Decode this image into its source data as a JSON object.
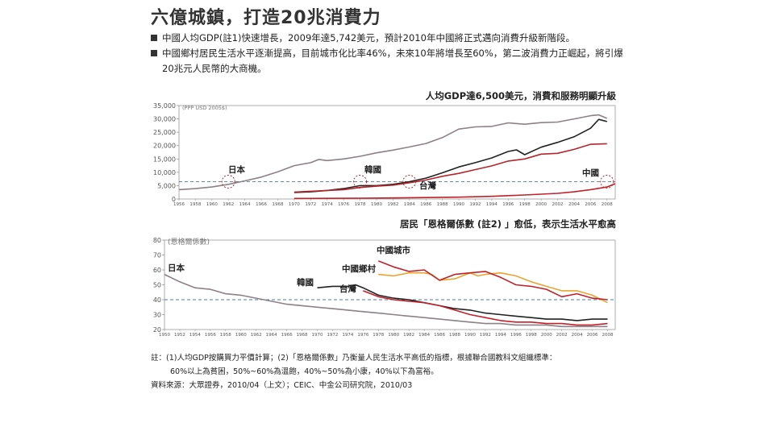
{
  "title": "六億城鎮，打造20兆消費力",
  "bullets": [
    "中國人均GDP(註1)快速增長，2009年達5,742美元，預計2010年中國將正式邁向消費升級新階段。",
    "中國鄉村居民生活水平逐漸提高，目前城市化比率46%，未來10年將增長至60%，第二波消費力正崛起，將引爆20兆元人民幣的大商機。"
  ],
  "notes": {
    "note_line1": "註：(1)人均GDP按購買力平價計算；(2)「恩格爾係數」乃衡量人民生活水平高低的指標，根據聯合國教科文組織標準：",
    "note_line2": "60%以上為貧困，50%~60%為溫飽，40%~50%為小康，40%以下為富裕。",
    "source": "資料來源：大眾證券，2010/04（上文）；CEIC、中金公司研究院，2010/03"
  },
  "chart_data": [
    {
      "type": "line",
      "title": "人均GDP達6,500美元，消費和服務明顯升級",
      "unit_label": "(PPP USD 2005$)",
      "xlim": [
        1956,
        2009
      ],
      "ylim": [
        0,
        35000
      ],
      "yticks": [
        0,
        5000,
        10000,
        15000,
        20000,
        25000,
        30000,
        35000
      ],
      "ytick_labels": [
        "0",
        "5,000",
        "10,000",
        "15,000",
        "20,000",
        "25,000",
        "30,000",
        "35,000"
      ],
      "xticks": [
        1956,
        1958,
        1960,
        1962,
        1964,
        1966,
        1968,
        1970,
        1972,
        1974,
        1976,
        1978,
        1980,
        1982,
        1984,
        1986,
        1988,
        1990,
        1992,
        1994,
        1996,
        1998,
        2000,
        2002,
        2004,
        2006,
        2008
      ],
      "reference_line": 6500,
      "series": [
        {
          "name": "日本",
          "color": "#8c8089",
          "x": [
            1956,
            1958,
            1960,
            1962,
            1964,
            1966,
            1968,
            1970,
            1972,
            1973,
            1974,
            1976,
            1978,
            1980,
            1982,
            1984,
            1986,
            1988,
            1990,
            1992,
            1994,
            1996,
            1998,
            2000,
            2002,
            2004,
            2006,
            2007,
            2008
          ],
          "values": [
            3500,
            3900,
            4500,
            5500,
            6800,
            8200,
            10200,
            12500,
            13600,
            14800,
            14400,
            15000,
            16000,
            17300,
            18300,
            19500,
            20800,
            23000,
            26200,
            27000,
            27200,
            28500,
            28000,
            28600,
            28800,
            30000,
            31200,
            31500,
            30200
          ]
        },
        {
          "name": "韓國",
          "color": "#222222",
          "x": [
            1970,
            1972,
            1974,
            1976,
            1978,
            1980,
            1982,
            1984,
            1986,
            1988,
            1990,
            1992,
            1994,
            1996,
            1997,
            1998,
            2000,
            2002,
            2004,
            2006,
            2007,
            2008
          ],
          "values": [
            2400,
            2700,
            3200,
            3900,
            5000,
            5000,
            5500,
            6500,
            7800,
            9800,
            12000,
            13600,
            15400,
            17800,
            18400,
            16600,
            19400,
            21200,
            23300,
            26500,
            29800,
            29000
          ]
        },
        {
          "name": "台灣",
          "color": "#b5262c",
          "x": [
            1970,
            1972,
            1974,
            1976,
            1978,
            1980,
            1982,
            1984,
            1986,
            1988,
            1990,
            1992,
            1994,
            1996,
            1998,
            2000,
            2002,
            2004,
            2006,
            2008
          ],
          "values": [
            2600,
            2900,
            3200,
            3500,
            4300,
            4800,
            5200,
            6100,
            7100,
            8500,
            9600,
            11000,
            12400,
            14200,
            15000,
            16800,
            17100,
            18600,
            20500,
            20700
          ]
        },
        {
          "name": "中國",
          "color": "#c0222a",
          "x": [
            1970,
            1974,
            1978,
            1982,
            1986,
            1990,
            1994,
            1998,
            2002,
            2004,
            2006,
            2008,
            2009
          ],
          "values": [
            200,
            250,
            300,
            400,
            550,
            700,
            1000,
            1500,
            2100,
            2700,
            3500,
            4500,
            5742
          ]
        }
      ],
      "annotations": [
        {
          "text": "日本",
          "x": 1962,
          "y": 6500
        },
        {
          "text": "韓國",
          "x": 1978,
          "y": 6500
        },
        {
          "text": "台灣",
          "x": 1984,
          "y": 6500
        },
        {
          "text": "中國",
          "x": 2008,
          "y": 6500
        }
      ]
    },
    {
      "type": "line",
      "title": "居民「恩格爾係數 (註2) 」愈低，表示生活水平愈高",
      "unit_label": "(恩格爾係數)",
      "xlim": [
        1950,
        2009
      ],
      "ylim": [
        20,
        80
      ],
      "yticks": [
        20,
        30,
        40,
        50,
        60,
        70,
        80
      ],
      "xticks": [
        1950,
        1952,
        1954,
        1956,
        1958,
        1960,
        1962,
        1964,
        1966,
        1968,
        1970,
        1972,
        1974,
        1976,
        1978,
        1980,
        1982,
        1984,
        1986,
        1988,
        1990,
        1992,
        1994,
        1996,
        1998,
        2000,
        2002,
        2004,
        2006,
        2008
      ],
      "reference_line": 40,
      "series": [
        {
          "name": "日本",
          "color": "#8c8089",
          "x": [
            1950,
            1952,
            1954,
            1956,
            1958,
            1960,
            1962,
            1964,
            1966,
            1968,
            1970,
            1972,
            1974,
            1976,
            1978,
            1980,
            1982,
            1984,
            1986,
            1988,
            1990,
            1992,
            1994,
            1996,
            1998,
            2000,
            2002,
            2004,
            2006,
            2008
          ],
          "values": [
            57,
            52,
            48,
            47,
            44,
            43,
            41,
            39,
            37,
            36,
            35,
            34,
            33,
            32,
            31,
            30,
            29,
            28,
            27,
            26,
            25,
            24,
            24,
            23,
            23,
            23,
            22,
            22,
            22,
            22
          ]
        },
        {
          "name": "韓國",
          "color": "#222222",
          "x": [
            1970,
            1972,
            1974,
            1975,
            1976,
            1978,
            1980,
            1982,
            1984,
            1986,
            1988,
            1990,
            1992,
            1994,
            1996,
            1998,
            2000,
            2002,
            2004,
            2006,
            2008
          ],
          "values": [
            48,
            49,
            49,
            50,
            48,
            43,
            41,
            40,
            38,
            36,
            34,
            33,
            31,
            30,
            29,
            28,
            27,
            27,
            26,
            27,
            27
          ]
        },
        {
          "name": "台灣",
          "color": "#c0222a",
          "x": [
            1976,
            1978,
            1980,
            1982,
            1984,
            1986,
            1988,
            1990,
            1992,
            1994,
            1996,
            1998,
            2000,
            2002,
            2004,
            2006,
            2008
          ],
          "values": [
            46,
            42,
            40,
            39,
            38,
            36,
            33,
            30,
            28,
            26,
            25,
            25,
            24,
            24,
            23,
            23,
            24
          ]
        },
        {
          "name": "中國鄉村",
          "color": "#e8a531",
          "x": [
            1978,
            1980,
            1982,
            1984,
            1985,
            1986,
            1988,
            1990,
            1991,
            1992,
            1994,
            1996,
            1998,
            2000,
            2002,
            2004,
            2006,
            2008
          ],
          "values": [
            57,
            56,
            58,
            58,
            57,
            53,
            54,
            58,
            56,
            57,
            58,
            56,
            52,
            49,
            46,
            46,
            43,
            38
          ]
        },
        {
          "name": "中國城市",
          "color": "#c0222a",
          "x": [
            1978,
            1980,
            1982,
            1984,
            1986,
            1988,
            1990,
            1992,
            1994,
            1996,
            1998,
            2000,
            2002,
            2004,
            2006,
            2008
          ],
          "values": [
            66,
            62,
            59,
            60,
            53,
            57,
            58,
            59,
            55,
            50,
            49,
            47,
            42,
            44,
            41,
            40
          ]
        }
      ],
      "annotations": [
        {
          "text": "日本"
        },
        {
          "text": "韓國"
        },
        {
          "text": "台灣"
        },
        {
          "text": "中國鄉村"
        },
        {
          "text": "中國城市"
        }
      ]
    }
  ]
}
